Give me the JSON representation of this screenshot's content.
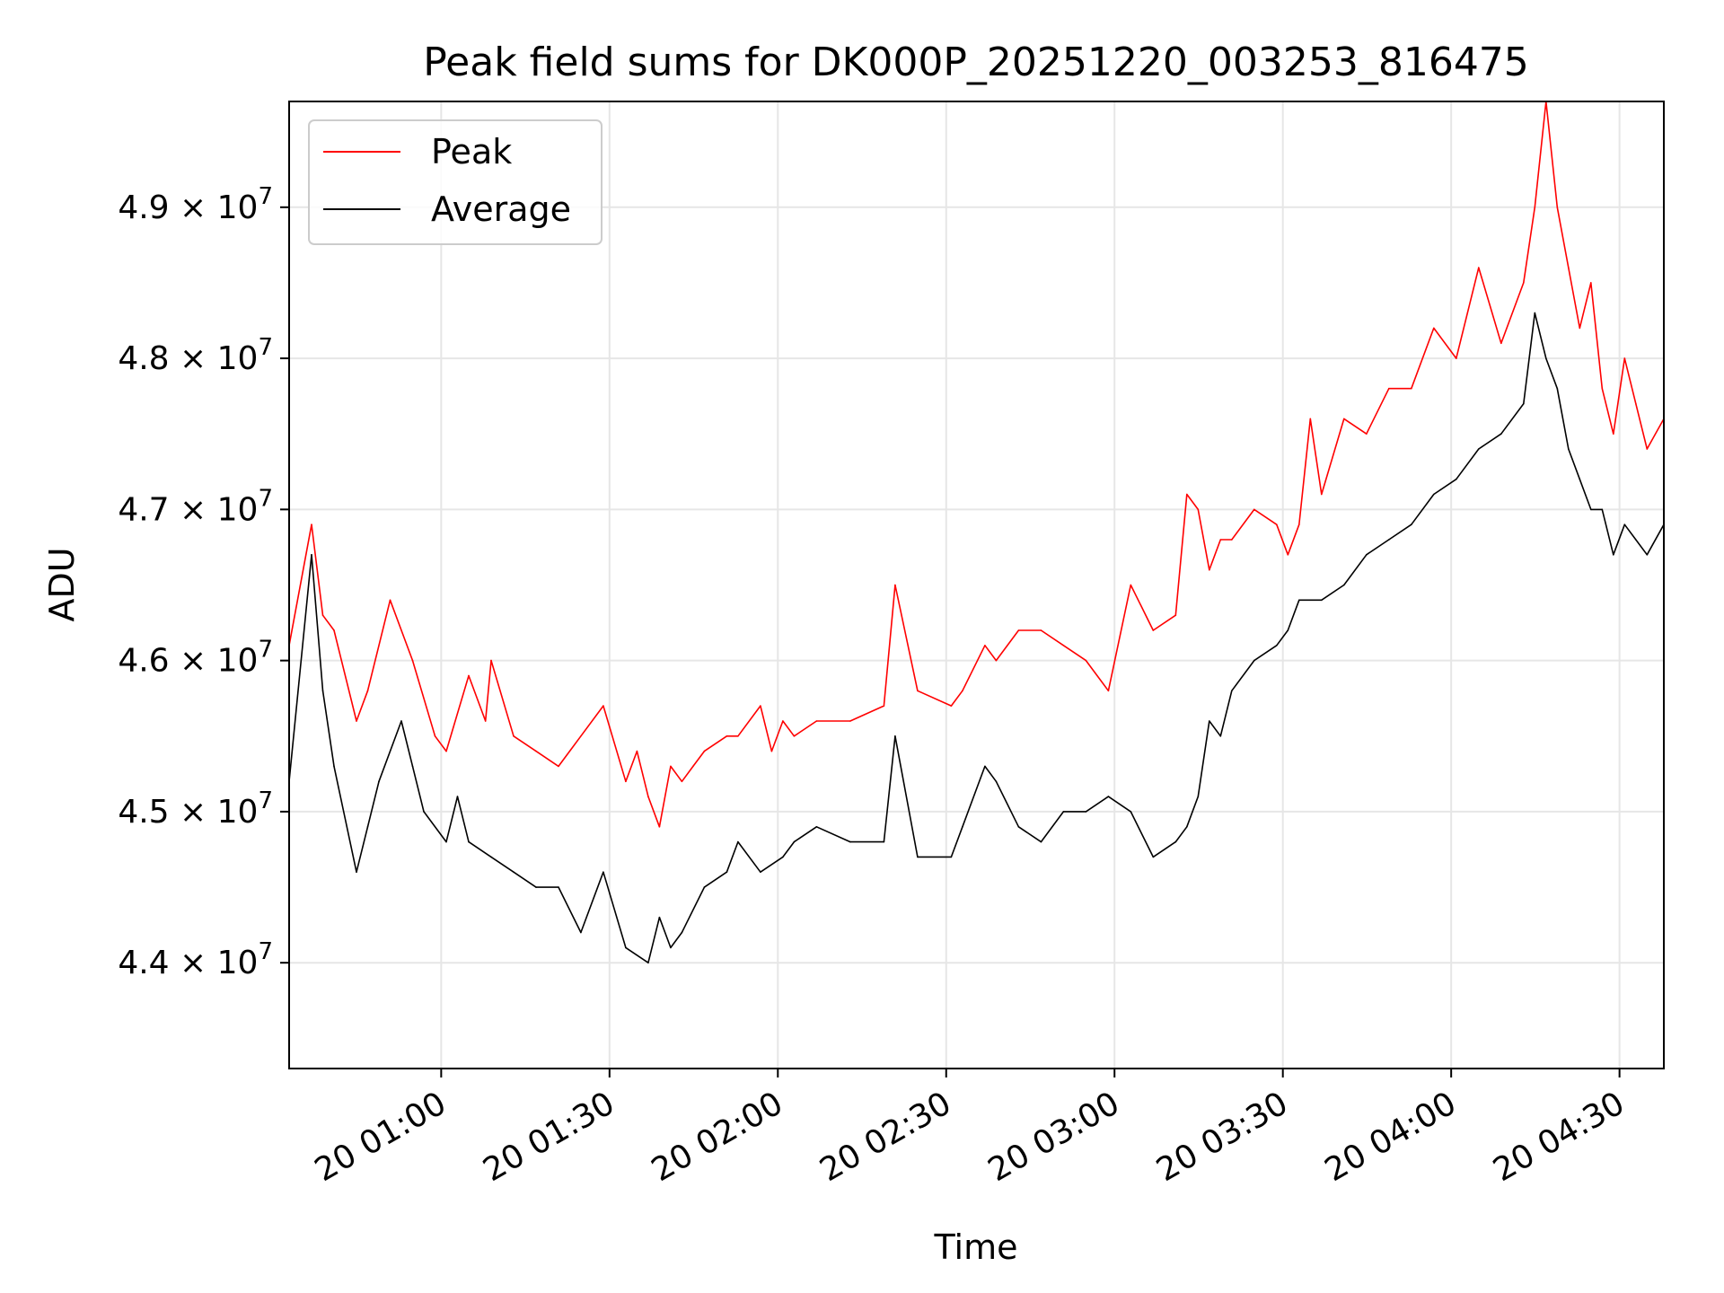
{
  "chart_data": {
    "type": "line",
    "title": "Peak field sums for DK000P_20251220_003253_816475",
    "xlabel": "Time",
    "ylabel": "ADU",
    "grid": true,
    "legend_position": "top-left",
    "x_unit": "minutes after 20 00:32:53",
    "xlim": [
      0,
      245
    ],
    "ylim": [
      43300000,
      49700000
    ],
    "x_ticks": [
      {
        "value": 27.1,
        "label": "20 01:00"
      },
      {
        "value": 57.1,
        "label": "20 01:30"
      },
      {
        "value": 87.1,
        "label": "20 02:00"
      },
      {
        "value": 117.1,
        "label": "20 02:30"
      },
      {
        "value": 147.1,
        "label": "20 03:00"
      },
      {
        "value": 177.1,
        "label": "20 03:30"
      },
      {
        "value": 207.1,
        "label": "20 04:00"
      },
      {
        "value": 237.1,
        "label": "20 04:30"
      }
    ],
    "y_ticks": [
      {
        "value": 44000000,
        "mantissa": "4.4",
        "exponent": "7"
      },
      {
        "value": 45000000,
        "mantissa": "4.5",
        "exponent": "7"
      },
      {
        "value": 46000000,
        "mantissa": "4.6",
        "exponent": "7"
      },
      {
        "value": 47000000,
        "mantissa": "4.7",
        "exponent": "7"
      },
      {
        "value": 48000000,
        "mantissa": "4.8",
        "exponent": "7"
      },
      {
        "value": 49000000,
        "mantissa": "4.9",
        "exponent": "7"
      }
    ],
    "y_tick_mult": "× 10",
    "series": [
      {
        "name": "Peak",
        "color": "#ff0000",
        "x": [
          0,
          4,
          6,
          8,
          12,
          14,
          18,
          22,
          26,
          28,
          32,
          35,
          36,
          40,
          44,
          48,
          52,
          56,
          60,
          62,
          64,
          66,
          68,
          70,
          72,
          74,
          78,
          80,
          84,
          86,
          88,
          90,
          94,
          100,
          106,
          108,
          112,
          118,
          120,
          124,
          126,
          130,
          134,
          138,
          142,
          146,
          150,
          154,
          158,
          160,
          162,
          164,
          166,
          168,
          172,
          176,
          178,
          180,
          182,
          184,
          188,
          192,
          196,
          200,
          204,
          208,
          212,
          216,
          220,
          222,
          224,
          226,
          228,
          230,
          232,
          234,
          236,
          238,
          240,
          242,
          245
        ],
        "values": [
          46100000,
          46900000,
          46300000,
          46200000,
          45600000,
          45800000,
          46400000,
          46000000,
          45500000,
          45400000,
          45900000,
          45600000,
          46000000,
          45500000,
          45400000,
          45300000,
          45500000,
          45700000,
          45200000,
          45400000,
          45100000,
          44900000,
          45300000,
          45200000,
          45300000,
          45400000,
          45500000,
          45500000,
          45700000,
          45400000,
          45600000,
          45500000,
          45600000,
          45600000,
          45700000,
          46500000,
          45800000,
          45700000,
          45800000,
          46100000,
          46000000,
          46200000,
          46200000,
          46100000,
          46000000,
          45800000,
          46500000,
          46200000,
          46300000,
          47100000,
          47000000,
          46600000,
          46800000,
          46800000,
          47000000,
          46900000,
          46700000,
          46900000,
          47600000,
          47100000,
          47600000,
          47500000,
          47800000,
          47800000,
          48200000,
          48000000,
          48600000,
          48100000,
          48500000,
          49000000,
          49700000,
          49000000,
          48600000,
          48200000,
          48500000,
          47800000,
          47500000,
          48000000,
          47700000,
          47400000,
          47600000
        ]
      },
      {
        "name": "Average",
        "color": "#000000",
        "x": [
          0,
          4,
          6,
          8,
          12,
          14,
          16,
          20,
          22,
          24,
          28,
          30,
          32,
          36,
          40,
          44,
          48,
          52,
          56,
          60,
          64,
          66,
          68,
          70,
          74,
          78,
          80,
          84,
          88,
          90,
          94,
          100,
          106,
          108,
          112,
          118,
          120,
          124,
          126,
          130,
          134,
          138,
          142,
          146,
          150,
          154,
          158,
          160,
          162,
          164,
          166,
          168,
          172,
          176,
          178,
          180,
          184,
          188,
          192,
          196,
          200,
          204,
          208,
          212,
          216,
          220,
          222,
          224,
          226,
          228,
          230,
          232,
          234,
          236,
          238,
          240,
          242,
          245
        ],
        "values": [
          45200000,
          46700000,
          45800000,
          45300000,
          44600000,
          44900000,
          45200000,
          45600000,
          45300000,
          45000000,
          44800000,
          45100000,
          44800000,
          44700000,
          44600000,
          44500000,
          44500000,
          44200000,
          44600000,
          44100000,
          44000000,
          44300000,
          44100000,
          44200000,
          44500000,
          44600000,
          44800000,
          44600000,
          44700000,
          44800000,
          44900000,
          44800000,
          44800000,
          45500000,
          44700000,
          44700000,
          44900000,
          45300000,
          45200000,
          44900000,
          44800000,
          45000000,
          45000000,
          45100000,
          45000000,
          44700000,
          44800000,
          44900000,
          45100000,
          45600000,
          45500000,
          45800000,
          46000000,
          46100000,
          46200000,
          46400000,
          46400000,
          46500000,
          46700000,
          46800000,
          46900000,
          47100000,
          47200000,
          47400000,
          47500000,
          47700000,
          48300000,
          48000000,
          47800000,
          47400000,
          47200000,
          47000000,
          47000000,
          46700000,
          46900000,
          46800000,
          46700000,
          46900000
        ]
      }
    ]
  }
}
